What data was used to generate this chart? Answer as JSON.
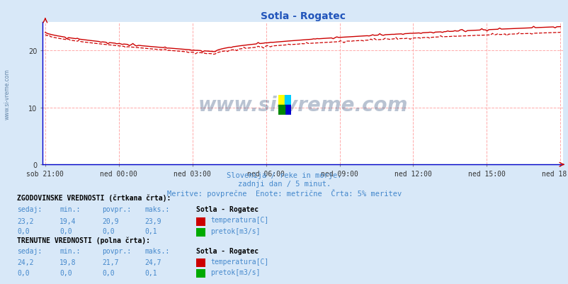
{
  "title": "Sotla - Rogatec",
  "title_color": "#2255bb",
  "bg_color": "#d8e8f8",
  "plot_bg_color": "#ffffff",
  "grid_color": "#ffaaaa",
  "x_labels": [
    "sob 21:00",
    "ned 00:00",
    "ned 03:00",
    "ned 06:00",
    "ned 09:00",
    "ned 12:00",
    "ned 15:00",
    "ned 18:00"
  ],
  "x_ticks_norm": [
    0,
    0.1429,
    0.2857,
    0.4286,
    0.5714,
    0.7143,
    0.8571,
    1.0
  ],
  "y_ticks": [
    0,
    10,
    20
  ],
  "ylim": [
    0,
    25
  ],
  "n_points": 289,
  "temp_line_color": "#cc0000",
  "flow_color": "#00aa00",
  "watermark": "www.si-vreme.com",
  "watermark_color": "#1a3a6a",
  "subtitle1": "Slovenija / reke in morje.",
  "subtitle2": "zadnji dan / 5 minut.",
  "subtitle3": "Meritve: povprečne  Enote: metrične  Črta: 5% meritev",
  "subtitle_color": "#4488cc",
  "legend_hist_label": "ZGODOVINSKE VREDNOSTI (črtkana črta):",
  "legend_curr_label": "TRENUTNE VREDNOSTI (polna črta):",
  "col_headers": [
    "sedaj:",
    "min.:",
    "povpr.:",
    "maks.:"
  ],
  "hist_values": [
    "23,2",
    "19,4",
    "20,9",
    "23,9"
  ],
  "hist_flow": [
    "0,0",
    "0,0",
    "0,0",
    "0,1"
  ],
  "curr_values": [
    "24,2",
    "19,8",
    "21,7",
    "24,7"
  ],
  "curr_flow": [
    "0,0",
    "0,0",
    "0,0",
    "0,1"
  ],
  "station_label": "Sotla - Rogatec",
  "temp_label": "temperatura[C]",
  "flow_label": "pretok[m3/s]",
  "text_color": "#4488cc",
  "bold_color": "#000000",
  "temp_icon_color": "#cc0000",
  "flow_icon_color": "#00aa00",
  "axis_color": "#0000cc",
  "tick_color": "#333333",
  "sidewater_color": "#6688aa"
}
